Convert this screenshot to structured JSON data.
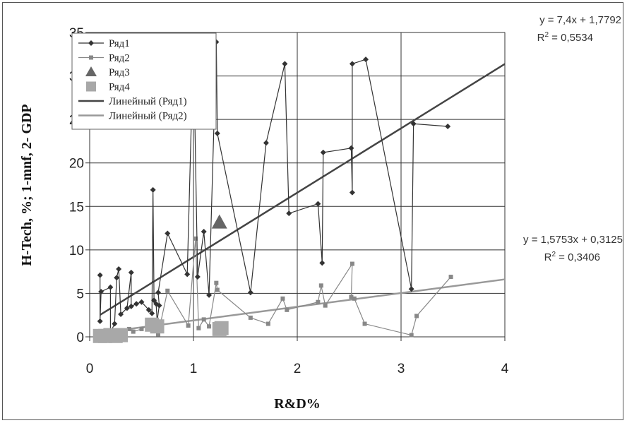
{
  "chart_data": {
    "type": "scatter",
    "xlabel": "R&D%",
    "ylabel": "H-Tech, %; 1-mnf, 2- GDP",
    "xlim": [
      0,
      4
    ],
    "ylim": [
      0,
      35
    ],
    "x_ticks": [
      "0",
      "1",
      "2",
      "3",
      "4"
    ],
    "y_ticks": [
      "0",
      "5",
      "10",
      "15",
      "20",
      "25",
      "30",
      "35"
    ],
    "grid": true,
    "legend_position": "top-left",
    "series": [
      {
        "name": "Ряд1",
        "style": "line-diamond",
        "color": "#333333",
        "points": [
          [
            0.1,
            7.1
          ],
          [
            0.1,
            1.8
          ],
          [
            0.11,
            5.2
          ],
          [
            0.2,
            5.7
          ],
          [
            0.2,
            0.5
          ],
          [
            0.24,
            1.5
          ],
          [
            0.26,
            6.8
          ],
          [
            0.28,
            7.8
          ],
          [
            0.3,
            2.6
          ],
          [
            0.36,
            3.3
          ],
          [
            0.4,
            7.4
          ],
          [
            0.4,
            3.5
          ],
          [
            0.45,
            3.8
          ],
          [
            0.5,
            4.0
          ],
          [
            0.57,
            3.1
          ],
          [
            0.6,
            2.7
          ],
          [
            0.61,
            16.9
          ],
          [
            0.62,
            4.2
          ],
          [
            0.64,
            3.8
          ],
          [
            0.65,
            1.8
          ],
          [
            0.67,
            3.6
          ],
          [
            0.66,
            5.1
          ],
          [
            0.75,
            11.9
          ],
          [
            0.94,
            7.2
          ],
          [
            1.0,
            33.9
          ],
          [
            1.04,
            6.9
          ],
          [
            1.1,
            12.1
          ],
          [
            1.15,
            4.8
          ],
          [
            1.22,
            33.9
          ],
          [
            1.23,
            23.4
          ],
          [
            1.55,
            5.1
          ],
          [
            1.7,
            22.3
          ],
          [
            1.88,
            31.4
          ],
          [
            1.92,
            14.2
          ],
          [
            2.2,
            15.3
          ],
          [
            2.24,
            8.5
          ],
          [
            2.25,
            21.2
          ],
          [
            2.52,
            21.7
          ],
          [
            2.53,
            16.6
          ],
          [
            2.53,
            31.4
          ],
          [
            2.66,
            31.9
          ],
          [
            3.1,
            5.5
          ],
          [
            3.12,
            24.5
          ],
          [
            3.45,
            24.2
          ]
        ]
      },
      {
        "name": "Ряд2",
        "style": "line-square",
        "color": "#888888",
        "points": [
          [
            0.1,
            0.2
          ],
          [
            0.15,
            0.3
          ],
          [
            0.2,
            0.3
          ],
          [
            0.25,
            0.5
          ],
          [
            0.3,
            0.4
          ],
          [
            0.38,
            0.9
          ],
          [
            0.42,
            0.6
          ],
          [
            0.5,
            0.9
          ],
          [
            0.6,
            1.6
          ],
          [
            0.63,
            1.2
          ],
          [
            0.66,
            0.3
          ],
          [
            0.75,
            5.3
          ],
          [
            0.95,
            1.3
          ],
          [
            1.02,
            11.3
          ],
          [
            1.05,
            1.0
          ],
          [
            1.1,
            2.0
          ],
          [
            1.15,
            1.2
          ],
          [
            1.22,
            6.2
          ],
          [
            1.23,
            5.4
          ],
          [
            1.55,
            2.2
          ],
          [
            1.72,
            1.5
          ],
          [
            1.86,
            4.4
          ],
          [
            1.9,
            3.1
          ],
          [
            2.2,
            4.0
          ],
          [
            2.23,
            5.9
          ],
          [
            2.27,
            3.6
          ],
          [
            2.53,
            8.4
          ],
          [
            2.52,
            4.6
          ],
          [
            2.55,
            4.4
          ],
          [
            2.65,
            1.5
          ],
          [
            3.1,
            0.2
          ],
          [
            3.15,
            2.4
          ],
          [
            3.48,
            6.9
          ]
        ]
      },
      {
        "name": "Ряд3",
        "style": "triangle",
        "color": "#666666",
        "points": [
          [
            1.25,
            13.1
          ]
        ]
      },
      {
        "name": "Ряд4",
        "style": "big-square",
        "color": "#a8a8a8",
        "points": [
          [
            0.1,
            0.1
          ],
          [
            0.15,
            0.1
          ],
          [
            0.2,
            0.2
          ],
          [
            0.25,
            0.1
          ],
          [
            0.3,
            0.2
          ],
          [
            0.6,
            1.4
          ],
          [
            0.65,
            1.2
          ],
          [
            1.25,
            0.9
          ],
          [
            1.27,
            1.0
          ]
        ]
      }
    ],
    "trendlines": [
      {
        "name": "Линейный (Ряд1)",
        "slope": 7.4,
        "intercept": 1.7792,
        "color": "#444444",
        "equation": "y = 7,4x + 1,7792",
        "r2_prefix": "R",
        "r2_suffix": " = 0,5534"
      },
      {
        "name": "Линейный (Ряд2)",
        "slope": 1.5753,
        "intercept": 0.3125,
        "color": "#999999",
        "equation": "y = 1,5753x + 0,3125",
        "r2_prefix": "R",
        "r2_suffix": " = 0,3406"
      }
    ]
  }
}
